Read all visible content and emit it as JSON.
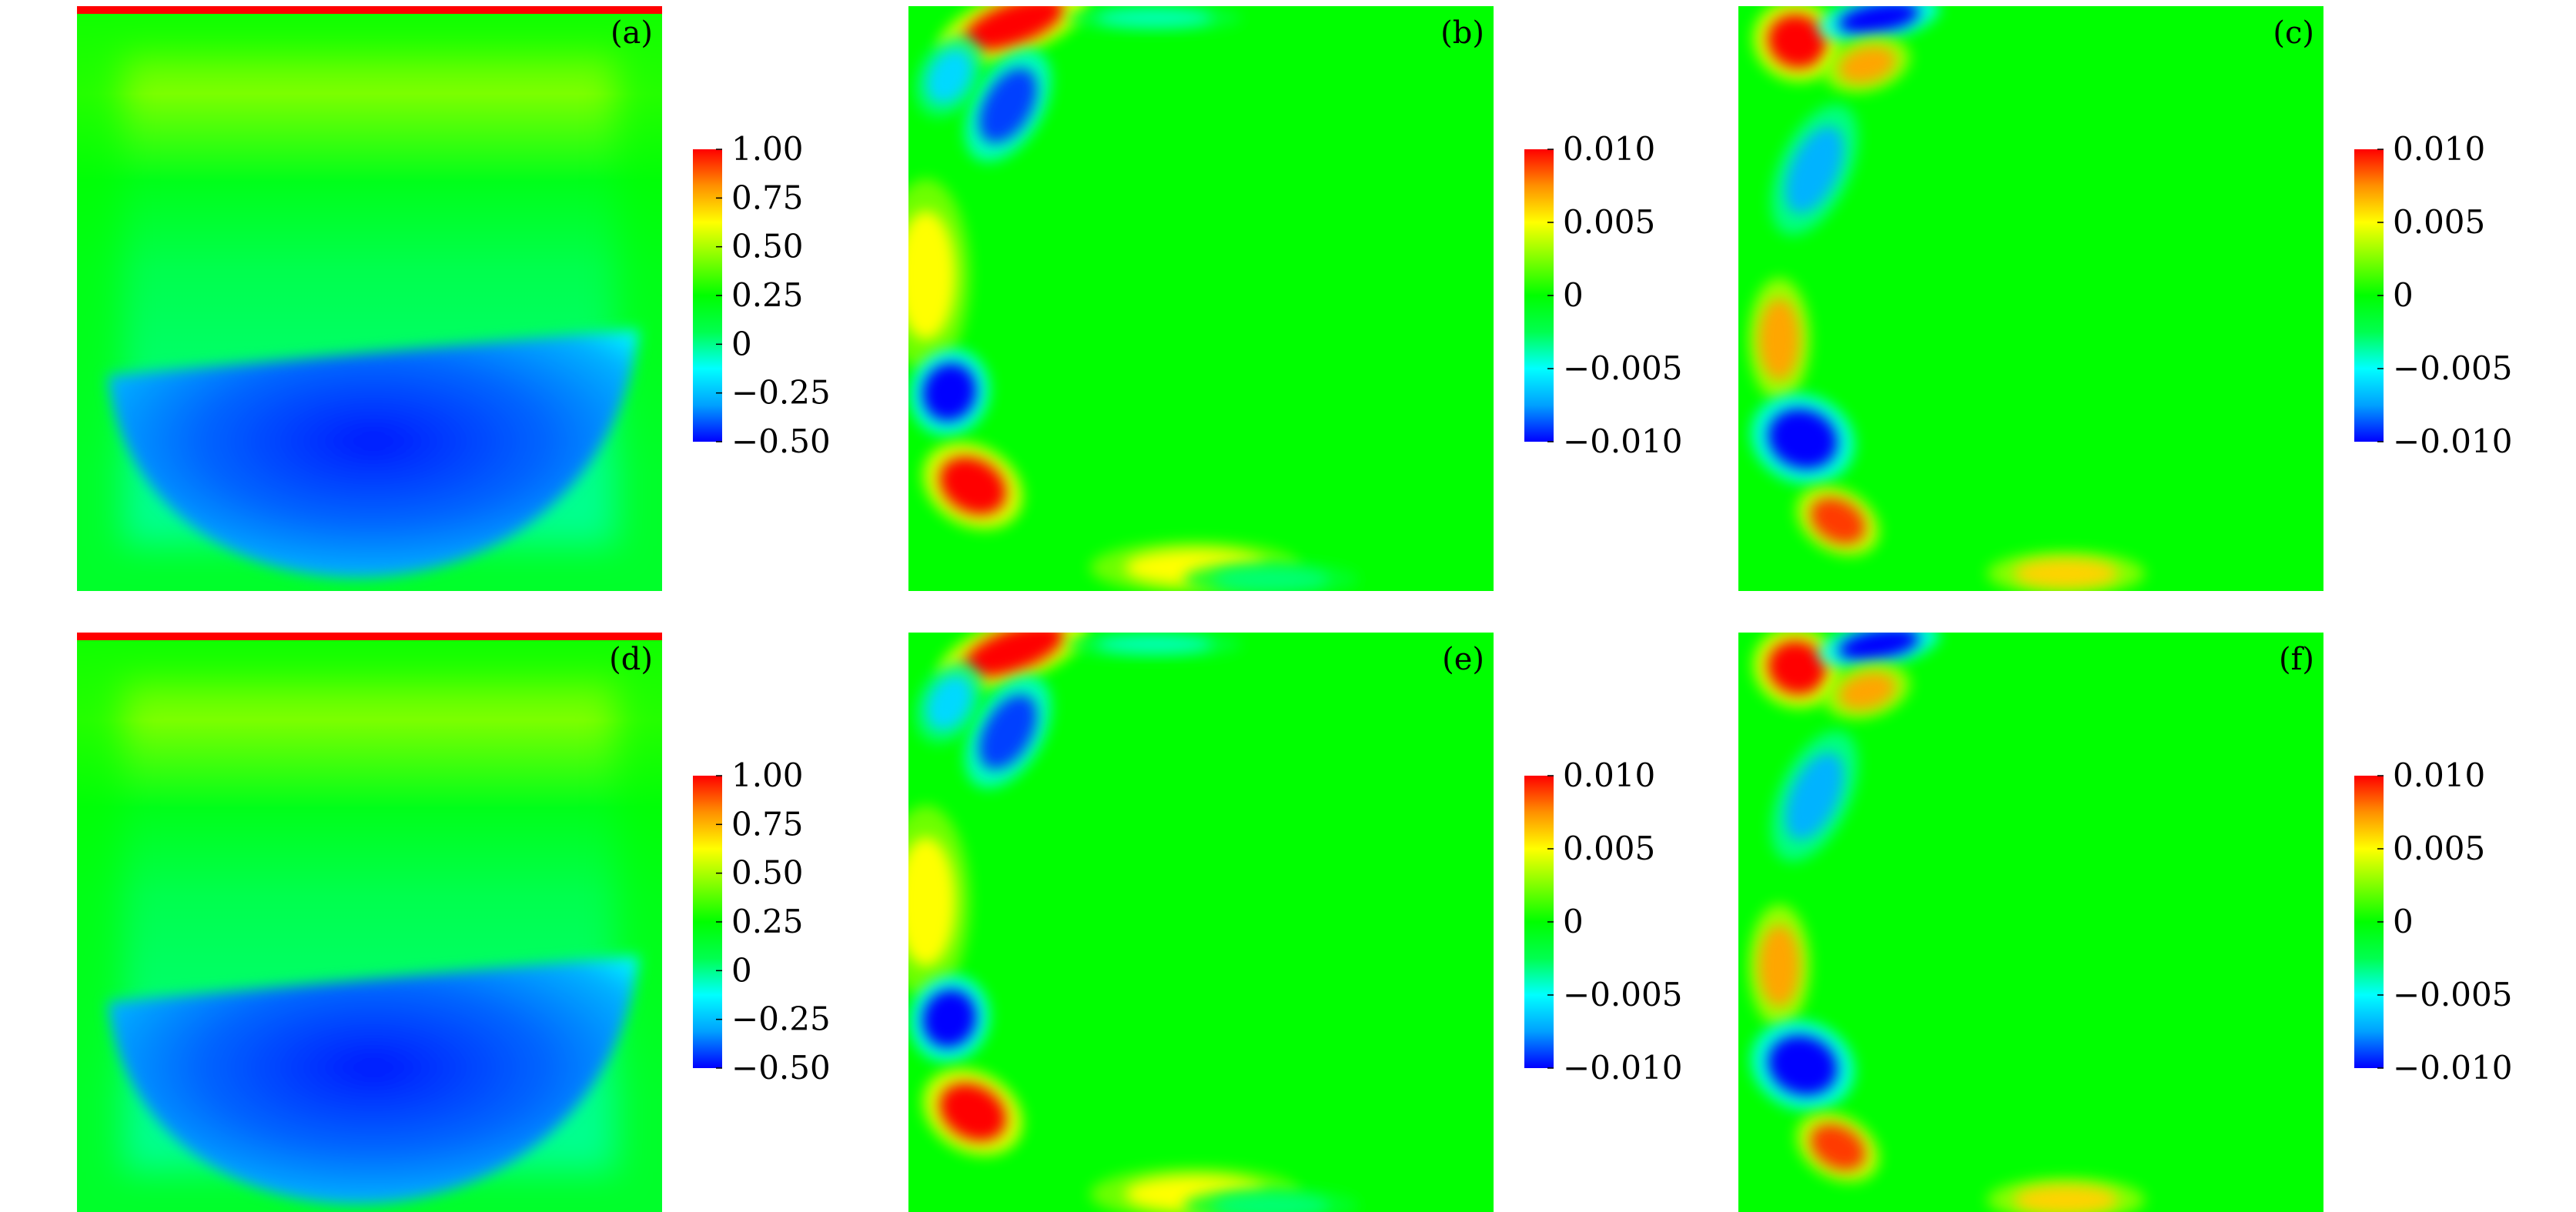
{
  "chart_data": [
    {
      "type": "heatmap",
      "panel_label": "(a)",
      "field": "velocity-like field: main vortex, positive near lid, negative lower bowl",
      "colorbar": {
        "min": -0.5,
        "max": 1.0,
        "ticks": [
          -0.5,
          -0.25,
          0,
          0.25,
          0.5,
          0.75,
          1.0
        ],
        "tick_labels": [
          "−0.50",
          "−0.25",
          "0",
          "0.25",
          "0.50",
          "0.75",
          "1.00"
        ]
      },
      "features": [
        {
          "shape": "lid-strip",
          "value": 1.0
        },
        {
          "shape": "upper-region",
          "value": 0.45
        },
        {
          "shape": "lower-bowl",
          "value": -0.42
        },
        {
          "shape": "bowl-core",
          "value": -0.5
        }
      ]
    },
    {
      "type": "heatmap",
      "panel_label": "(b)",
      "field": "error field, near zero with localized wall extrema",
      "colorbar": {
        "min": -0.01,
        "max": 0.01,
        "ticks": [
          -0.01,
          -0.005,
          0,
          0.005,
          0.01
        ],
        "tick_labels": [
          "−0.010",
          "−0.005",
          "0",
          "0.005",
          "0.010"
        ]
      },
      "features": [
        {
          "position": "top-left near lid",
          "value": 0.01
        },
        {
          "position": "top center lid",
          "value": -0.004
        },
        {
          "position": "upper-left",
          "value": -0.009
        },
        {
          "position": "upper-left small",
          "value": -0.006
        },
        {
          "position": "left wall middle",
          "value": 0.005
        },
        {
          "position": "lower-left",
          "value": -0.01
        },
        {
          "position": "lower-left",
          "value": 0.01
        },
        {
          "position": "bottom wall",
          "value": 0.005
        },
        {
          "position": "bottom wall",
          "value": -0.003
        }
      ]
    },
    {
      "type": "heatmap",
      "panel_label": "(c)",
      "field": "error field, near zero with localized wall extrema",
      "colorbar": {
        "min": -0.01,
        "max": 0.01,
        "ticks": [
          -0.01,
          -0.005,
          0,
          0.005,
          0.01
        ],
        "tick_labels": [
          "−0.010",
          "−0.005",
          "0",
          "0.005",
          "0.010"
        ]
      },
      "features": [
        {
          "position": "top-left near lid",
          "value": 0.01
        },
        {
          "position": "top near lid",
          "value": -0.01
        },
        {
          "position": "upper-left",
          "value": 0.007
        },
        {
          "position": "upper-left",
          "value": -0.007
        },
        {
          "position": "left wall middle",
          "value": 0.007
        },
        {
          "position": "lower-left",
          "value": -0.01
        },
        {
          "position": "lower-left",
          "value": 0.009
        },
        {
          "position": "bottom wall",
          "value": 0.006
        }
      ]
    },
    {
      "type": "heatmap",
      "panel_label": "(d)",
      "field": "velocity-like field: main vortex, positive near lid, negative lower bowl",
      "colorbar": {
        "min": -0.5,
        "max": 1.0,
        "ticks": [
          -0.5,
          -0.25,
          0,
          0.25,
          0.5,
          0.75,
          1.0
        ],
        "tick_labels": [
          "−0.50",
          "−0.25",
          "0",
          "0.25",
          "0.50",
          "0.75",
          "1.00"
        ]
      },
      "features": [
        {
          "shape": "lid-strip",
          "value": 1.0
        },
        {
          "shape": "upper-region",
          "value": 0.45
        },
        {
          "shape": "lower-bowl",
          "value": -0.42
        },
        {
          "shape": "bowl-core",
          "value": -0.5
        }
      ]
    },
    {
      "type": "heatmap",
      "panel_label": "(e)",
      "field": "error field, near zero with localized wall extrema",
      "colorbar": {
        "min": -0.01,
        "max": 0.01,
        "ticks": [
          -0.01,
          -0.005,
          0,
          0.005,
          0.01
        ],
        "tick_labels": [
          "−0.010",
          "−0.005",
          "0",
          "0.005",
          "0.010"
        ]
      },
      "features": [
        {
          "position": "top-left near lid",
          "value": 0.01
        },
        {
          "position": "top center lid",
          "value": -0.004
        },
        {
          "position": "upper-left",
          "value": -0.009
        },
        {
          "position": "upper-left small",
          "value": -0.006
        },
        {
          "position": "left wall middle",
          "value": 0.005
        },
        {
          "position": "lower-left",
          "value": -0.01
        },
        {
          "position": "lower-left",
          "value": 0.01
        },
        {
          "position": "bottom wall",
          "value": 0.005
        },
        {
          "position": "bottom wall",
          "value": -0.003
        }
      ]
    },
    {
      "type": "heatmap",
      "panel_label": "(f)",
      "field": "error field, near zero with localized wall extrema",
      "colorbar": {
        "min": -0.01,
        "max": 0.01,
        "ticks": [
          -0.01,
          -0.005,
          0,
          0.005,
          0.01
        ],
        "tick_labels": [
          "−0.010",
          "−0.005",
          "0",
          "0.005",
          "0.010"
        ]
      },
      "features": [
        {
          "position": "top-left near lid",
          "value": 0.01
        },
        {
          "position": "top near lid",
          "value": -0.01
        },
        {
          "position": "upper-left",
          "value": 0.007
        },
        {
          "position": "upper-left",
          "value": -0.007
        },
        {
          "position": "left wall middle",
          "value": 0.007
        },
        {
          "position": "lower-left",
          "value": -0.01
        },
        {
          "position": "lower-left",
          "value": 0.009
        },
        {
          "position": "bottom wall",
          "value": 0.006
        }
      ]
    }
  ],
  "colormap": [
    "#0000ff",
    "#00a0ff",
    "#00ffff",
    "#00ff50",
    "#00ff00",
    "#80ff00",
    "#ffff00",
    "#ff9000",
    "#ff0000"
  ],
  "colors": {
    "background": "#ffffff",
    "text": "#000000"
  }
}
